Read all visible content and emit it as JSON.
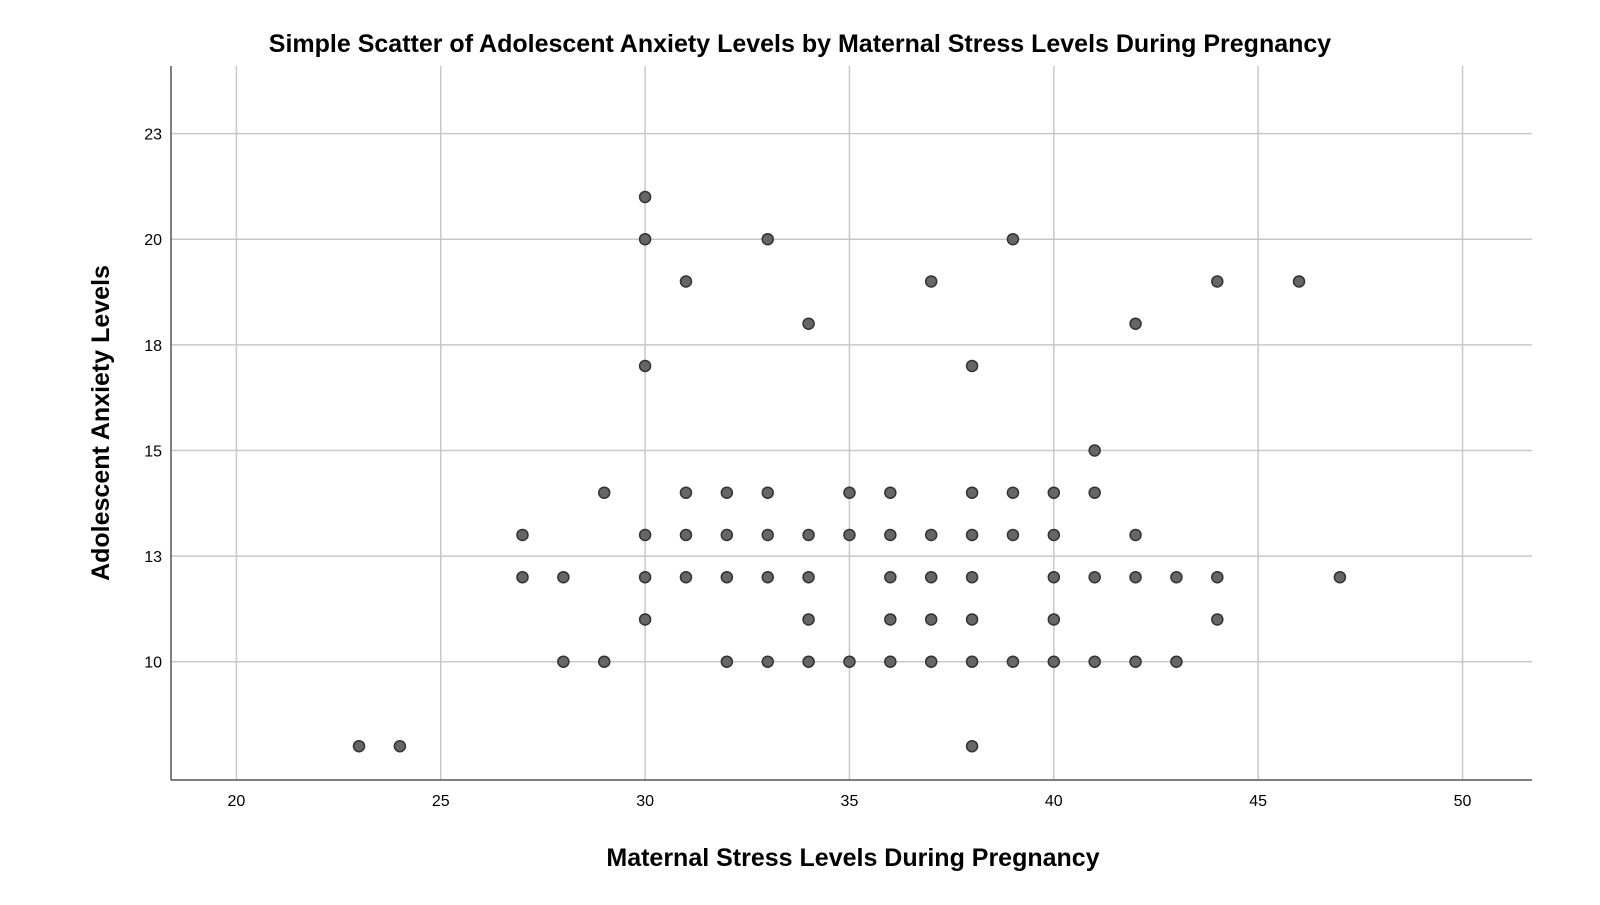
{
  "chart_data": {
    "type": "scatter",
    "title": "Simple Scatter of Adolescent Anxiety Levels by Maternal Stress Levels During Pregnancy",
    "xlabel": "Maternal Stress Levels During Pregnancy",
    "ylabel": "Adolescent Anxiety Levels",
    "xlim": [
      18.4,
      51.7
    ],
    "ylim": [
      7.2,
      24.1
    ],
    "xticks": [
      20,
      25,
      30,
      35,
      40,
      45,
      50
    ],
    "yticks": [
      10,
      13,
      15,
      18,
      20,
      23
    ],
    "ytick_positions": [
      10,
      12.5,
      15,
      17.5,
      20,
      22.5
    ],
    "grid": true,
    "legend": "none",
    "marker_color": "#666666",
    "marker_edge": "#333333",
    "grid_color": "#c8c8c8",
    "points": [
      {
        "x": 23,
        "y": 8
      },
      {
        "x": 24,
        "y": 8
      },
      {
        "x": 38,
        "y": 8
      },
      {
        "x": 28,
        "y": 10
      },
      {
        "x": 29,
        "y": 10
      },
      {
        "x": 32,
        "y": 10
      },
      {
        "x": 33,
        "y": 10
      },
      {
        "x": 34,
        "y": 10
      },
      {
        "x": 35,
        "y": 10
      },
      {
        "x": 36,
        "y": 10
      },
      {
        "x": 37,
        "y": 10
      },
      {
        "x": 38,
        "y": 10
      },
      {
        "x": 39,
        "y": 10
      },
      {
        "x": 40,
        "y": 10
      },
      {
        "x": 41,
        "y": 10
      },
      {
        "x": 42,
        "y": 10
      },
      {
        "x": 43,
        "y": 10
      },
      {
        "x": 30,
        "y": 11
      },
      {
        "x": 34,
        "y": 11
      },
      {
        "x": 36,
        "y": 11
      },
      {
        "x": 37,
        "y": 11
      },
      {
        "x": 38,
        "y": 11
      },
      {
        "x": 40,
        "y": 11
      },
      {
        "x": 44,
        "y": 11
      },
      {
        "x": 27,
        "y": 12
      },
      {
        "x": 28,
        "y": 12
      },
      {
        "x": 30,
        "y": 12
      },
      {
        "x": 31,
        "y": 12
      },
      {
        "x": 32,
        "y": 12
      },
      {
        "x": 33,
        "y": 12
      },
      {
        "x": 34,
        "y": 12
      },
      {
        "x": 36,
        "y": 12
      },
      {
        "x": 37,
        "y": 12
      },
      {
        "x": 38,
        "y": 12
      },
      {
        "x": 40,
        "y": 12
      },
      {
        "x": 41,
        "y": 12
      },
      {
        "x": 42,
        "y": 12
      },
      {
        "x": 43,
        "y": 12
      },
      {
        "x": 44,
        "y": 12
      },
      {
        "x": 47,
        "y": 12
      },
      {
        "x": 27,
        "y": 13
      },
      {
        "x": 30,
        "y": 13
      },
      {
        "x": 31,
        "y": 13
      },
      {
        "x": 32,
        "y": 13
      },
      {
        "x": 33,
        "y": 13
      },
      {
        "x": 34,
        "y": 13
      },
      {
        "x": 35,
        "y": 13
      },
      {
        "x": 36,
        "y": 13
      },
      {
        "x": 37,
        "y": 13
      },
      {
        "x": 38,
        "y": 13
      },
      {
        "x": 39,
        "y": 13
      },
      {
        "x": 40,
        "y": 13
      },
      {
        "x": 42,
        "y": 13
      },
      {
        "x": 29,
        "y": 14
      },
      {
        "x": 31,
        "y": 14
      },
      {
        "x": 32,
        "y": 14
      },
      {
        "x": 33,
        "y": 14
      },
      {
        "x": 35,
        "y": 14
      },
      {
        "x": 36,
        "y": 14
      },
      {
        "x": 38,
        "y": 14
      },
      {
        "x": 39,
        "y": 14
      },
      {
        "x": 40,
        "y": 14
      },
      {
        "x": 41,
        "y": 14
      },
      {
        "x": 41,
        "y": 15
      },
      {
        "x": 30,
        "y": 17
      },
      {
        "x": 38,
        "y": 17
      },
      {
        "x": 34,
        "y": 18
      },
      {
        "x": 42,
        "y": 18
      },
      {
        "x": 31,
        "y": 19
      },
      {
        "x": 37,
        "y": 19
      },
      {
        "x": 44,
        "y": 19
      },
      {
        "x": 46,
        "y": 19
      },
      {
        "x": 30,
        "y": 20
      },
      {
        "x": 33,
        "y": 20
      },
      {
        "x": 39,
        "y": 20
      },
      {
        "x": 30,
        "y": 21
      }
    ]
  }
}
